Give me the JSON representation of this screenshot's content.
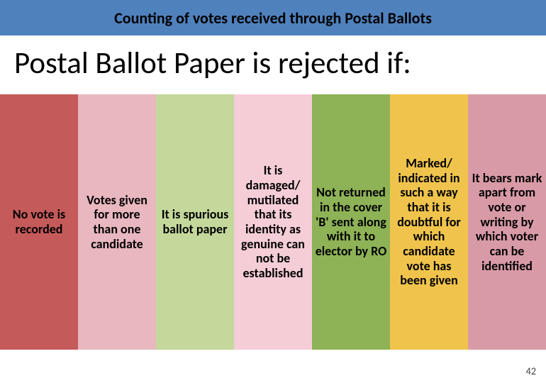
{
  "header": {
    "title": "Counting of votes received through Postal Ballots",
    "background_color": "#4f81bd"
  },
  "sub_heading": "Postal Ballot Paper is rejected if:",
  "columns": [
    {
      "text": "No vote is recorded",
      "bg": "#c55a5a"
    },
    {
      "text": "Votes given for more than one candidate",
      "bg": "#e8b7bf"
    },
    {
      "text": "It is spurious ballot paper",
      "bg": "#c3d89a"
    },
    {
      "text": "It is damaged/ mutilated that its identity as genuine can not be established",
      "bg": "#f4cdd7"
    },
    {
      "text": "Not returned in the cover 'B' sent along with it to elector by RO",
      "bg": "#8eb256"
    },
    {
      "text": "Marked/ indicated in such a way that it is doubtful for which candidate vote has been given",
      "bg": "#f0c44c"
    },
    {
      "text": "It bears mark apart from vote or writing by which voter can be identified",
      "bg": "#d89aa6"
    }
  ],
  "page_number": "42",
  "body_background": "#ffffff"
}
